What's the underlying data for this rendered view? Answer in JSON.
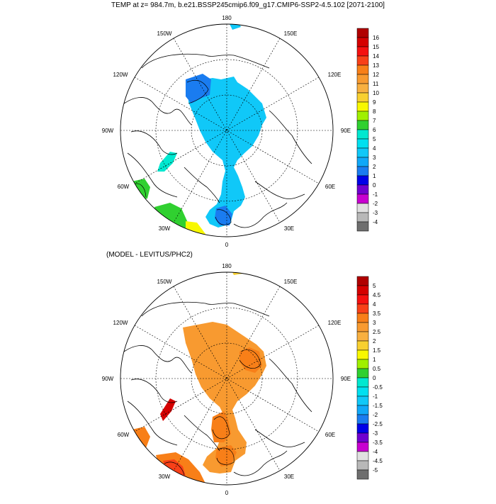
{
  "title": "TEMP at z= 984.7m, b.e21.BSSP245cmip6.f09_g17.CMIP6-SSP2-4.5.102 [2071-2100]",
  "subtitle": "(MODEL - LEVITUS/PHC2)",
  "longitude_labels": [
    "180",
    "150W",
    "150E",
    "120W",
    "120E",
    "90W",
    "90E",
    "60W",
    "60E",
    "30W",
    "30E",
    "0"
  ],
  "top_colorbar": {
    "labels": [
      "16",
      "15",
      "14",
      "13",
      "12",
      "11",
      "10",
      "9",
      "8",
      "7",
      "6",
      "5",
      "4",
      "3",
      "2",
      "1",
      "0",
      "-1",
      "-2",
      "-3",
      "-4"
    ],
    "colors": [
      "#b00000",
      "#d50000",
      "#f51010",
      "#f84018",
      "#f87f18",
      "#f89a30",
      "#f8b040",
      "#f8d030",
      "#f8f800",
      "#a0f000",
      "#30d030",
      "#20e890",
      "#00e8d0",
      "#00e0f0",
      "#10c8f8",
      "#10a8f8",
      "#1a7cf0",
      "#0000e8",
      "#7000d0",
      "#c800d0",
      "#e0e0e0",
      "#b8b8b8",
      "#6e6e6e"
    ]
  },
  "bottom_colorbar": {
    "labels": [
      "5",
      "4.5",
      "4",
      "3.5",
      "3",
      "2.5",
      "2",
      "1.5",
      "1",
      "0.5",
      "0",
      "-0.5",
      "-1",
      "-1.5",
      "-2",
      "-2.5",
      "-3",
      "-3.5",
      "-4",
      "-4.5",
      "-5"
    ],
    "colors": [
      "#b00000",
      "#d50000",
      "#f51010",
      "#f84018",
      "#f87f18",
      "#f89a30",
      "#f8b040",
      "#f8d030",
      "#f8f800",
      "#a0f000",
      "#30d030",
      "#20e890",
      "#00e8d0",
      "#00e0f0",
      "#10c8f8",
      "#10a8f8",
      "#1a7cf0",
      "#0000e8",
      "#7000d0",
      "#c800d0",
      "#e0e0e0",
      "#b8b8b8",
      "#6e6e6e"
    ]
  }
}
